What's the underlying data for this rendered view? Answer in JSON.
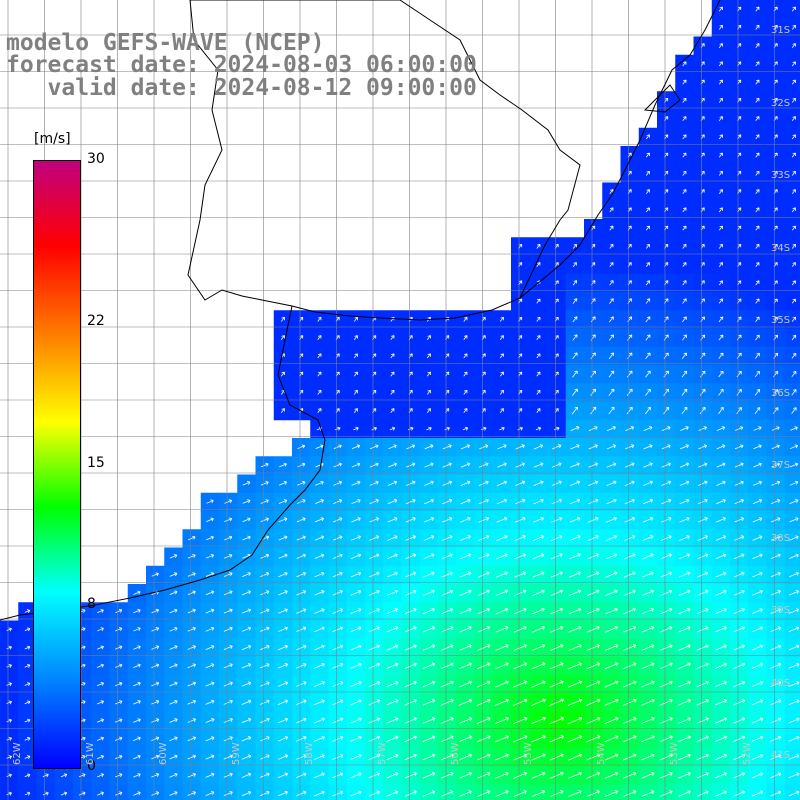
{
  "title": {
    "line1": "modelo GEFS-WAVE (NCEP)",
    "line2": "forecast date: 2024-08-03 06:00:00",
    "line3": "   valid date: 2024-08-12 09:00:00"
  },
  "colorbar": {
    "unit": "[m/s]",
    "ticks": [
      "30",
      "22",
      "15",
      "8",
      "0"
    ],
    "tick_values": [
      30,
      22,
      15,
      8,
      0
    ],
    "min": 0,
    "max": 30,
    "colors": [
      "#0000ff",
      "#0080ff",
      "#00ffff",
      "#00ff00",
      "#ffff00",
      "#ff8000",
      "#ff0000",
      "#c0007f"
    ]
  },
  "lat_labels": [
    "31S",
    "32S",
    "33S",
    "34S",
    "35S",
    "36S",
    "37S",
    "38S",
    "39S",
    "40S",
    "41S"
  ],
  "lon_labels": [
    "62W",
    "61W",
    "60W",
    "59W",
    "58W",
    "57W",
    "56W",
    "55W",
    "54W",
    "53W",
    "52W"
  ],
  "colors": {
    "land": "#ffffff",
    "coast": "#000000",
    "grid": "#808080",
    "arrow": "#ffffff",
    "label": "#c8c8c8"
  }
}
